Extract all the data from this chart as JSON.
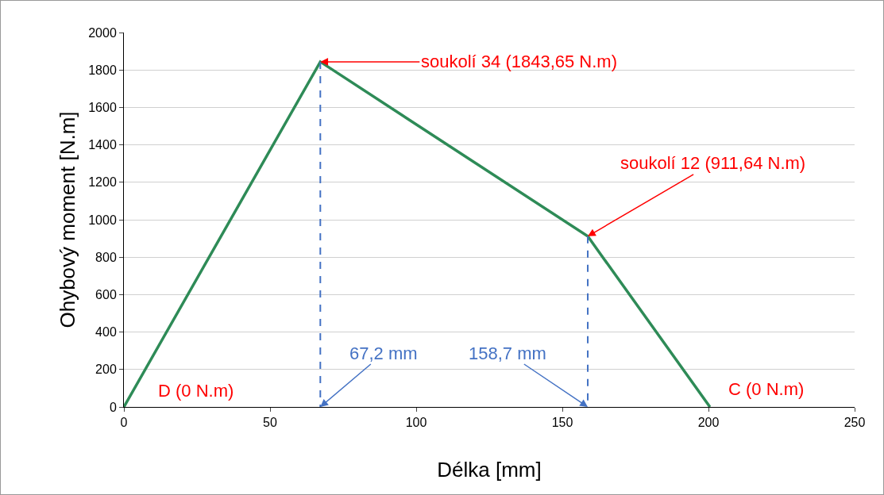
{
  "chart_data": {
    "type": "line",
    "xlabel": "Délka [mm]",
    "ylabel": "Ohybový moment [N.m]",
    "series": [
      {
        "color": "#2e8b57",
        "x": [
          0,
          67.2,
          158.7,
          200.5
        ],
        "values": [
          0,
          1843.65,
          911.64,
          0
        ]
      },
      {
        "color": "#4472c4",
        "x": [
          67.2,
          67.2
        ],
        "values": [
          1843.65,
          0
        ],
        "line_style": "dashed"
      },
      {
        "color": "#4472c4",
        "x": [
          158.7,
          158.7
        ],
        "values": [
          911.64,
          0
        ],
        "line_style": "dashed"
      }
    ],
    "annotations": [
      {
        "text": "soukolí 34 (1843,65 N.m)",
        "x": 67.2,
        "y": 1843.65
      },
      {
        "text": "soukolí 12 (911,64 N.m)",
        "x": 158.7,
        "y": 911.64
      },
      {
        "text": "67,2 mm",
        "x": 67.2,
        "y": 0
      },
      {
        "text": "158,7 mm",
        "x": 158.7,
        "y": 0
      },
      {
        "text": "D (0 N.m)",
        "x": 0,
        "y": 0
      },
      {
        "text": "C (0 N.m)",
        "x": 200.5,
        "y": 0
      }
    ],
    "xlim": [
      0,
      250
    ],
    "xticks": [
      0,
      50,
      100,
      150,
      200,
      250
    ],
    "ylim": [
      0,
      2000
    ],
    "yticks": [
      0,
      200,
      400,
      600,
      800,
      1000,
      1200,
      1400,
      1600,
      1800,
      2000
    ],
    "grid": "y",
    "marker": "none",
    "line_style": "solid"
  }
}
